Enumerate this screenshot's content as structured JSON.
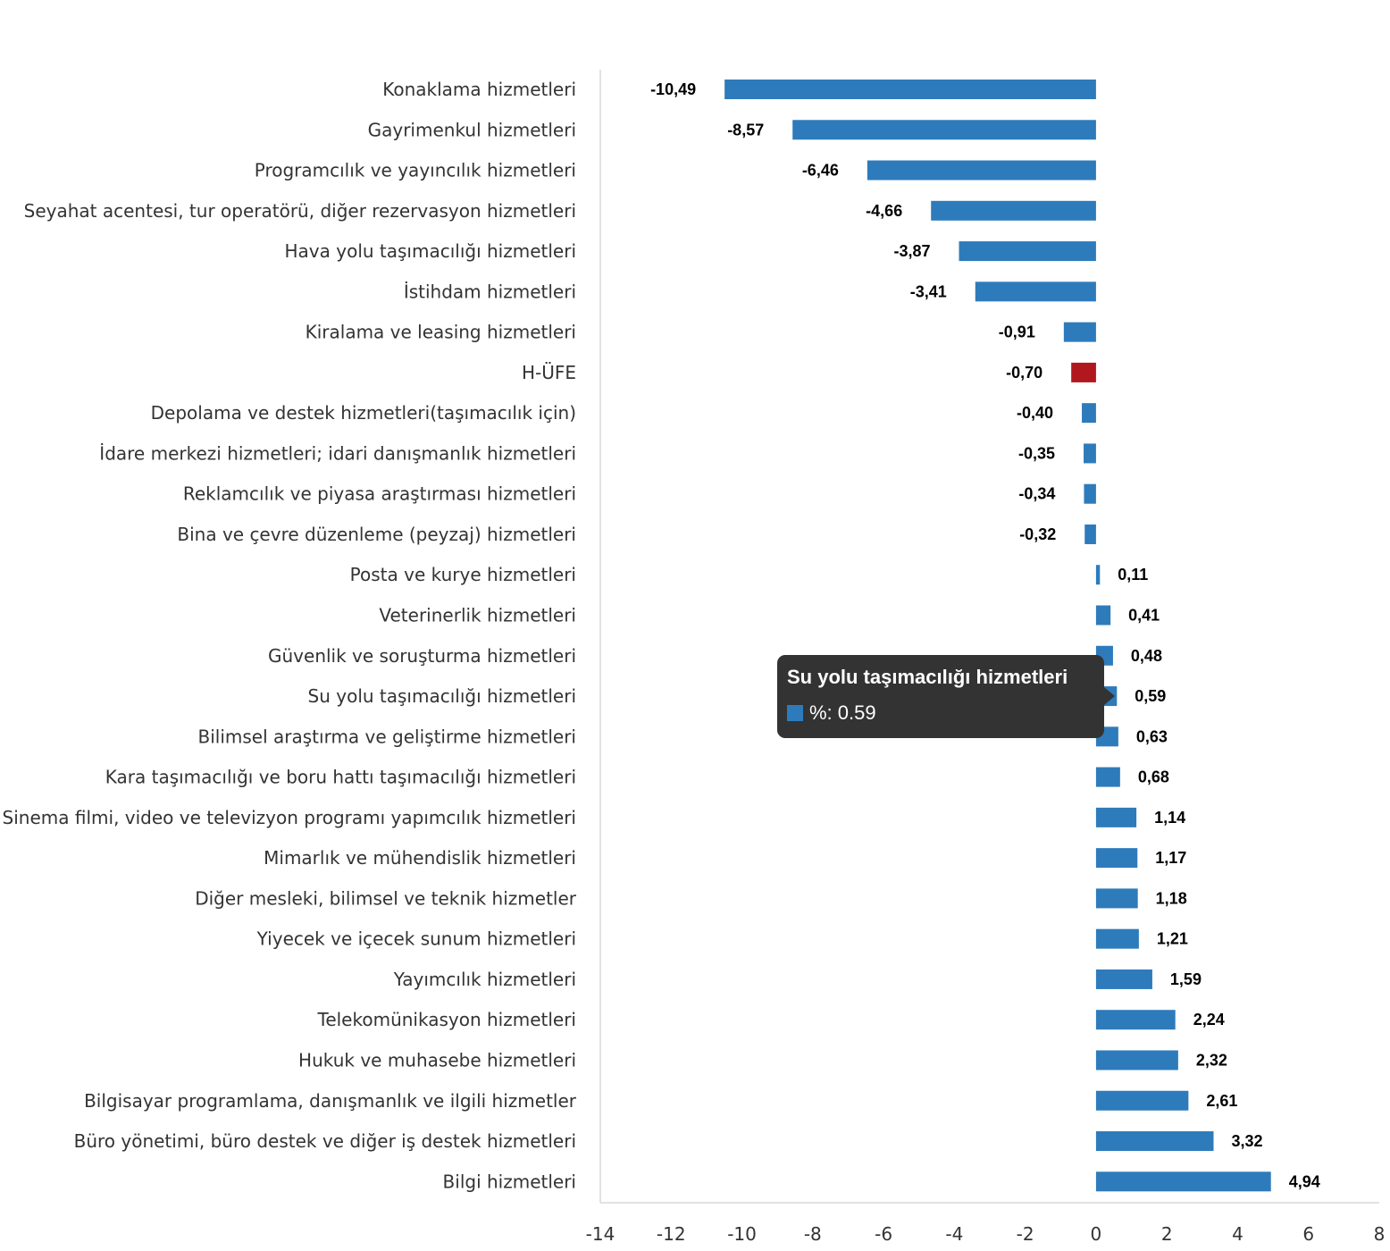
{
  "chart_data": {
    "type": "bar",
    "orientation": "horizontal",
    "categories": [
      "Konaklama hizmetleri",
      "Gayrimenkul hizmetleri",
      "Programcılık ve yayıncılık hizmetleri",
      "Seyahat acentesi, tur operatörü, diğer rezervasyon hizmetleri",
      "Hava yolu taşımacılığı hizmetleri",
      "İstihdam hizmetleri",
      "Kiralama ve leasing hizmetleri",
      "H-ÜFE",
      "Depolama ve destek hizmetleri(taşımacılık için)",
      "İdare merkezi hizmetleri; idari danışmanlık hizmetleri",
      "Reklamcılık ve piyasa araştırması hizmetleri",
      "Bina ve çevre düzenleme (peyzaj) hizmetleri",
      "Posta ve kurye hizmetleri",
      "Veterinerlik hizmetleri",
      "Güvenlik ve soruşturma hizmetleri",
      "Su yolu taşımacılığı hizmetleri",
      "Bilimsel araştırma ve geliştirme hizmetleri",
      "Kara taşımacılığı ve boru hattı taşımacılığı hizmetleri",
      "Sinema filmi, video ve televizyon programı yapımcılık hizmetleri",
      "Mimarlık ve mühendislik hizmetleri",
      "Diğer mesleki, bilimsel ve teknik hizmetler",
      "Yiyecek ve içecek sunum hizmetleri",
      "Yayımcılık hizmetleri",
      "Telekomünikasyon hizmetleri",
      "Hukuk ve muhasebe hizmetleri",
      "Bilgisayar programlama, danışmanlık ve ilgili hizmetler",
      "Büro yönetimi, büro destek ve diğer iş destek hizmetleri",
      "Bilgi hizmetleri"
    ],
    "values": [
      -10.49,
      -8.57,
      -6.46,
      -4.66,
      -3.87,
      -3.41,
      -0.91,
      -0.7,
      -0.4,
      -0.35,
      -0.34,
      -0.32,
      0.11,
      0.41,
      0.48,
      0.59,
      0.63,
      0.68,
      1.14,
      1.17,
      1.18,
      1.21,
      1.59,
      2.24,
      2.32,
      2.61,
      3.32,
      4.94
    ],
    "value_labels": [
      "-10,49",
      "-8,57",
      "-6,46",
      "-4,66",
      "-3,87",
      "-3,41",
      "-0,91",
      "-0,70",
      "-0,40",
      "-0,35",
      "-0,34",
      "-0,32",
      "0,11",
      "0,41",
      "0,48",
      "0,59",
      "0,63",
      "0,68",
      "1,14",
      "1,17",
      "1,18",
      "1,21",
      "1,59",
      "2,24",
      "2,32",
      "2,61",
      "3,32",
      "4,94"
    ],
    "xlim": [
      -14,
      8
    ],
    "xticks": [
      -14,
      -12,
      -10,
      -8,
      -6,
      -4,
      -2,
      0,
      2,
      4,
      6,
      8
    ],
    "title": "",
    "xlabel": "",
    "ylabel": "",
    "series_name": "%",
    "highlight_category": "H-ÜFE",
    "colors": {
      "bar": "#2e7bbb",
      "highlight": "#b0181d",
      "axis": "#d9d9d9"
    }
  },
  "tooltip": {
    "title": "Su yolu taşımacılığı hizmetleri",
    "value_text": "%: 0.59",
    "swatch_color": "#2e7bbb"
  }
}
